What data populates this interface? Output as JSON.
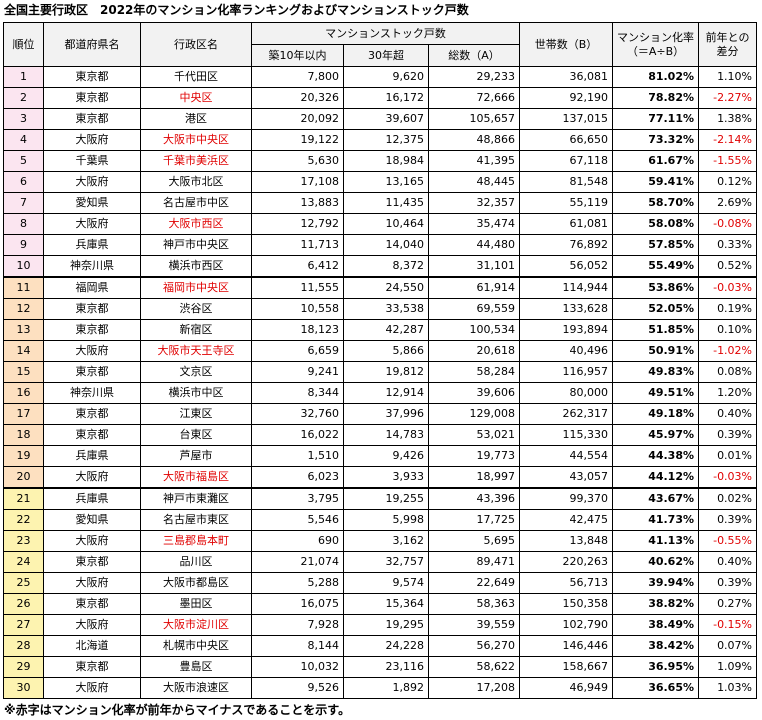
{
  "title": "全国主要行政区　2022年のマンション化率ランキングおよびマンションストック戸数",
  "note": "※赤字はマンション化率が前年からマイナスであることを示す。",
  "headers": {
    "rank": "順位",
    "pref": "都道府県名",
    "city": "行政区名",
    "stock_group": "マンションストック戸数",
    "within10": "築10年以内",
    "over30": "30年超",
    "total": "総数（A）",
    "households": "世帯数（B）",
    "rate": "マンション化率\n（＝A÷B）",
    "diff": "前年との\n差分"
  },
  "colors": {
    "negative": "#e00000",
    "group1": "#fbe5f0",
    "group2": "#fde0c0",
    "group3": "#fdf3b0"
  },
  "rows": [
    {
      "rank": "1",
      "pref": "東京都",
      "city": "千代田区",
      "within10": "7,800",
      "over30": "9,620",
      "total": "29,233",
      "households": "36,081",
      "rate": "81.02%",
      "diff": "1.10%",
      "neg": false
    },
    {
      "rank": "2",
      "pref": "東京都",
      "city": "中央区",
      "within10": "20,326",
      "over30": "16,172",
      "total": "72,666",
      "households": "92,190",
      "rate": "78.82%",
      "diff": "-2.27%",
      "neg": true
    },
    {
      "rank": "3",
      "pref": "東京都",
      "city": "港区",
      "within10": "20,092",
      "over30": "39,607",
      "total": "105,657",
      "households": "137,015",
      "rate": "77.11%",
      "diff": "1.38%",
      "neg": false
    },
    {
      "rank": "4",
      "pref": "大阪府",
      "city": "大阪市中央区",
      "within10": "19,122",
      "over30": "12,375",
      "total": "48,866",
      "households": "66,650",
      "rate": "73.32%",
      "diff": "-2.14%",
      "neg": true
    },
    {
      "rank": "5",
      "pref": "千葉県",
      "city": "千葉市美浜区",
      "within10": "5,630",
      "over30": "18,984",
      "total": "41,395",
      "households": "67,118",
      "rate": "61.67%",
      "diff": "-1.55%",
      "neg": true
    },
    {
      "rank": "6",
      "pref": "大阪府",
      "city": "大阪市北区",
      "within10": "17,108",
      "over30": "13,165",
      "total": "48,445",
      "households": "81,548",
      "rate": "59.41%",
      "diff": "0.12%",
      "neg": false
    },
    {
      "rank": "7",
      "pref": "愛知県",
      "city": "名古屋市中区",
      "within10": "13,883",
      "over30": "11,435",
      "total": "32,357",
      "households": "55,119",
      "rate": "58.70%",
      "diff": "2.69%",
      "neg": false
    },
    {
      "rank": "8",
      "pref": "大阪府",
      "city": "大阪市西区",
      "within10": "12,792",
      "over30": "10,464",
      "total": "35,474",
      "households": "61,081",
      "rate": "58.08%",
      "diff": "-0.08%",
      "neg": true
    },
    {
      "rank": "9",
      "pref": "兵庫県",
      "city": "神戸市中央区",
      "within10": "11,713",
      "over30": "14,040",
      "total": "44,480",
      "households": "76,892",
      "rate": "57.85%",
      "diff": "0.33%",
      "neg": false
    },
    {
      "rank": "10",
      "pref": "神奈川県",
      "city": "横浜市西区",
      "within10": "6,412",
      "over30": "8,372",
      "total": "31,101",
      "households": "56,052",
      "rate": "55.49%",
      "diff": "0.52%",
      "neg": false
    },
    {
      "rank": "11",
      "pref": "福岡県",
      "city": "福岡市中央区",
      "within10": "11,555",
      "over30": "24,550",
      "total": "61,914",
      "households": "114,944",
      "rate": "53.86%",
      "diff": "-0.03%",
      "neg": true
    },
    {
      "rank": "12",
      "pref": "東京都",
      "city": "渋谷区",
      "within10": "10,558",
      "over30": "33,538",
      "total": "69,559",
      "households": "133,628",
      "rate": "52.05%",
      "diff": "0.19%",
      "neg": false
    },
    {
      "rank": "13",
      "pref": "東京都",
      "city": "新宿区",
      "within10": "18,123",
      "over30": "42,287",
      "total": "100,534",
      "households": "193,894",
      "rate": "51.85%",
      "diff": "0.10%",
      "neg": false
    },
    {
      "rank": "14",
      "pref": "大阪府",
      "city": "大阪市天王寺区",
      "within10": "6,659",
      "over30": "5,866",
      "total": "20,618",
      "households": "40,496",
      "rate": "50.91%",
      "diff": "-1.02%",
      "neg": true
    },
    {
      "rank": "15",
      "pref": "東京都",
      "city": "文京区",
      "within10": "9,241",
      "over30": "19,812",
      "total": "58,284",
      "households": "116,957",
      "rate": "49.83%",
      "diff": "0.08%",
      "neg": false
    },
    {
      "rank": "16",
      "pref": "神奈川県",
      "city": "横浜市中区",
      "within10": "8,344",
      "over30": "12,914",
      "total": "39,606",
      "households": "80,000",
      "rate": "49.51%",
      "diff": "1.20%",
      "neg": false
    },
    {
      "rank": "17",
      "pref": "東京都",
      "city": "江東区",
      "within10": "32,760",
      "over30": "37,996",
      "total": "129,008",
      "households": "262,317",
      "rate": "49.18%",
      "diff": "0.40%",
      "neg": false
    },
    {
      "rank": "18",
      "pref": "東京都",
      "city": "台東区",
      "within10": "16,022",
      "over30": "14,783",
      "total": "53,021",
      "households": "115,330",
      "rate": "45.97%",
      "diff": "0.39%",
      "neg": false
    },
    {
      "rank": "19",
      "pref": "兵庫県",
      "city": "芦屋市",
      "within10": "1,510",
      "over30": "9,426",
      "total": "19,773",
      "households": "44,554",
      "rate": "44.38%",
      "diff": "0.01%",
      "neg": false
    },
    {
      "rank": "20",
      "pref": "大阪府",
      "city": "大阪市福島区",
      "within10": "6,023",
      "over30": "3,933",
      "total": "18,997",
      "households": "43,057",
      "rate": "44.12%",
      "diff": "-0.03%",
      "neg": true
    },
    {
      "rank": "21",
      "pref": "兵庫県",
      "city": "神戸市東灘区",
      "within10": "3,795",
      "over30": "19,255",
      "total": "43,396",
      "households": "99,370",
      "rate": "43.67%",
      "diff": "0.02%",
      "neg": false
    },
    {
      "rank": "22",
      "pref": "愛知県",
      "city": "名古屋市東区",
      "within10": "5,546",
      "over30": "5,998",
      "total": "17,725",
      "households": "42,475",
      "rate": "41.73%",
      "diff": "0.39%",
      "neg": false
    },
    {
      "rank": "23",
      "pref": "大阪府",
      "city": "三島郡島本町",
      "within10": "690",
      "over30": "3,162",
      "total": "5,695",
      "households": "13,848",
      "rate": "41.13%",
      "diff": "-0.55%",
      "neg": true
    },
    {
      "rank": "24",
      "pref": "東京都",
      "city": "品川区",
      "within10": "21,074",
      "over30": "32,757",
      "total": "89,471",
      "households": "220,263",
      "rate": "40.62%",
      "diff": "0.40%",
      "neg": false
    },
    {
      "rank": "25",
      "pref": "大阪府",
      "city": "大阪市都島区",
      "within10": "5,288",
      "over30": "9,574",
      "total": "22,649",
      "households": "56,713",
      "rate": "39.94%",
      "diff": "0.39%",
      "neg": false
    },
    {
      "rank": "26",
      "pref": "東京都",
      "city": "墨田区",
      "within10": "16,075",
      "over30": "15,364",
      "total": "58,363",
      "households": "150,358",
      "rate": "38.82%",
      "diff": "0.27%",
      "neg": false
    },
    {
      "rank": "27",
      "pref": "大阪府",
      "city": "大阪市淀川区",
      "within10": "7,928",
      "over30": "19,295",
      "total": "39,559",
      "households": "102,790",
      "rate": "38.49%",
      "diff": "-0.15%",
      "neg": true
    },
    {
      "rank": "28",
      "pref": "北海道",
      "city": "札幌市中央区",
      "within10": "8,144",
      "over30": "24,228",
      "total": "56,270",
      "households": "146,446",
      "rate": "38.42%",
      "diff": "0.07%",
      "neg": false
    },
    {
      "rank": "29",
      "pref": "東京都",
      "city": "豊島区",
      "within10": "10,032",
      "over30": "23,116",
      "total": "58,622",
      "households": "158,667",
      "rate": "36.95%",
      "diff": "1.09%",
      "neg": false
    },
    {
      "rank": "30",
      "pref": "大阪府",
      "city": "大阪市浪速区",
      "within10": "9,526",
      "over30": "1,892",
      "total": "17,208",
      "households": "46,949",
      "rate": "36.65%",
      "diff": "1.03%",
      "neg": false
    }
  ]
}
